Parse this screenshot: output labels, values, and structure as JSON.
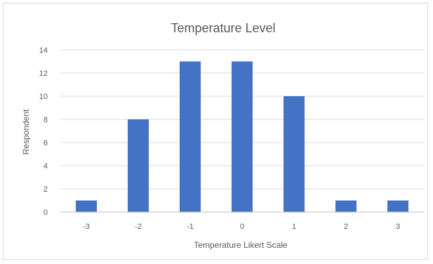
{
  "chart_data": {
    "type": "bar",
    "title": "Temperature Level",
    "xlabel": "Temperature Likert Scale",
    "ylabel": "Respondent",
    "categories": [
      "-3",
      "-2",
      "-1",
      "0",
      "1",
      "2",
      "3"
    ],
    "values": [
      1,
      8,
      13,
      13,
      10,
      1,
      1
    ],
    "ylim": [
      0,
      14
    ],
    "yticks": [
      0,
      2,
      4,
      6,
      8,
      10,
      12,
      14
    ],
    "grid": true,
    "legend": "none",
    "colors": {
      "bar": "#4472c4",
      "grid": "#d9d9d9",
      "axis": "#bfbfbf",
      "text": "#595959"
    }
  }
}
